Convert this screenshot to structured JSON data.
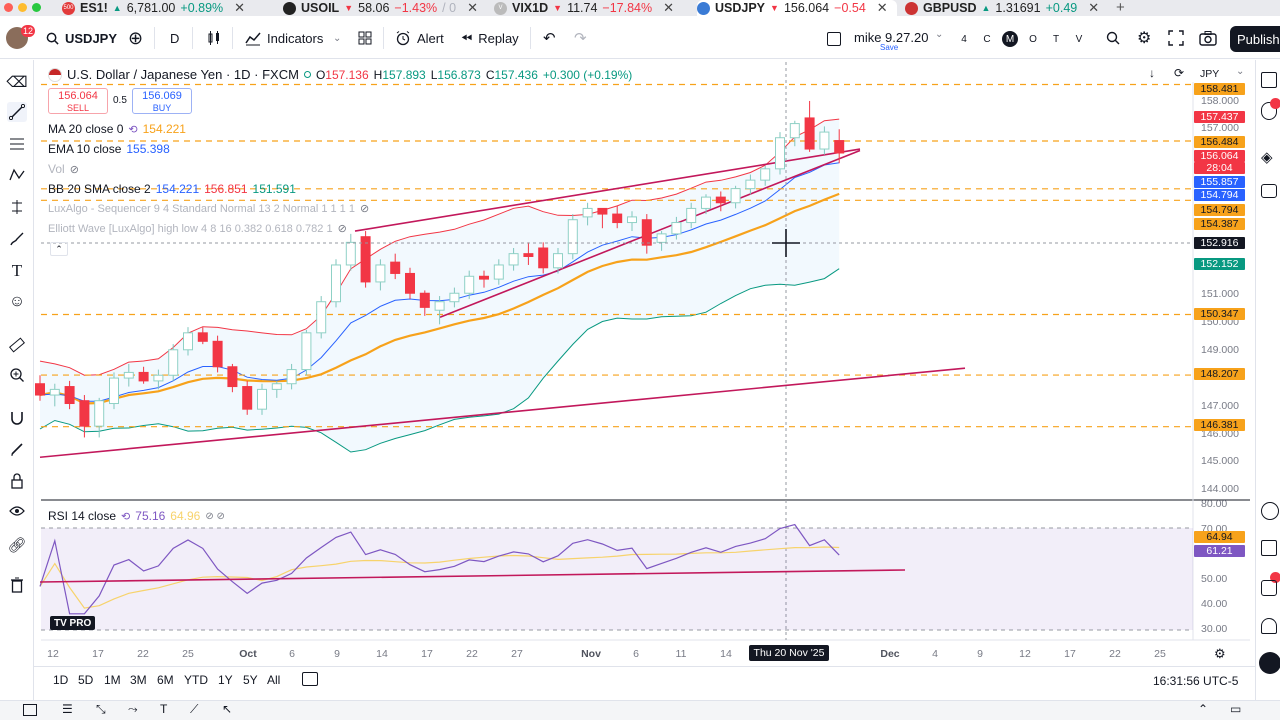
{
  "tabs": [
    {
      "badge": "500",
      "symbol": "ES1!",
      "price": "6,781.00",
      "change": "+0.89%",
      "dir": "up",
      "color": "#e23b3b"
    },
    {
      "badge": "",
      "symbol": "USOIL",
      "price": "58.06",
      "change": "−1.43%",
      "tail": "/ 0",
      "dir": "dn",
      "color": "#222"
    },
    {
      "badge": "V",
      "symbol": "VIX1D",
      "price": "11.74",
      "change": "−17.84%",
      "dir": "dn",
      "color": "#bbb"
    },
    {
      "badge": "",
      "symbol": "USDJPY",
      "price": "156.064",
      "change": "−0.54",
      "dir": "dn",
      "color": "#3a7bd5",
      "active": true
    },
    {
      "badge": "",
      "symbol": "GBPUSD",
      "price": "1.31691",
      "change": "+0.49",
      "dir": "up",
      "color": "#c33"
    }
  ],
  "toolbar": {
    "notif_count": "12",
    "symbol": "USDJPY",
    "interval": "D",
    "indicators": "Indicators",
    "alert": "Alert",
    "replay": "Replay",
    "layout_name": "mike 9.27.20",
    "layout_status": "Save",
    "layout_flags": [
      "4",
      "C",
      "M",
      "O",
      "T",
      "V"
    ],
    "publish": "Publish"
  },
  "chart_header": {
    "title": "U.S. Dollar / Japanese Yen · 1D · FXCM",
    "ohlc_o": "157.136",
    "ohlc_h": "157.893",
    "ohlc_l": "156.873",
    "ohlc_c": "157.436",
    "change": "+0.300 (+0.19%)",
    "currency": "JPY"
  },
  "trade": {
    "sell_price": "156.064",
    "sell_label": "SELL",
    "spread": "0.5",
    "buy_price": "156.069",
    "buy_label": "BUY"
  },
  "indicators": [
    {
      "label": "MA 20 close 0",
      "values": [
        "154.221"
      ],
      "colors": [
        "#f7a21b"
      ]
    },
    {
      "label": "EMA 10 close",
      "values": [
        "155.398"
      ],
      "colors": [
        "#2962ff"
      ]
    },
    {
      "label": "Vol",
      "values": [],
      "colors": []
    },
    {
      "label": "BB 20 SMA close 2",
      "values": [
        "154.221",
        "156.851",
        "151.591"
      ],
      "colors": [
        "#2962ff",
        "#f23645",
        "#089981"
      ]
    },
    {
      "label": "LuxAlgo - Sequencer 9 4 Standard Normal 13 2 Normal 1 1 1 1",
      "values": [],
      "colors": []
    },
    {
      "label": "Elliott Wave [LuxAlgo] high low 4 8 16 0.382 0.618 0.782 1",
      "values": [],
      "colors": []
    }
  ],
  "rsi": {
    "label": "RSI 14 close",
    "value": "75.16",
    "value2": "64.96"
  },
  "price_axis": {
    "ticks": [
      "158.000",
      "157.000",
      "156.000",
      "155.000",
      "153.000",
      "151.000",
      "150.000",
      "149.000",
      "147.000",
      "146.000",
      "145.000",
      "144.000"
    ],
    "boxes": [
      {
        "text": "158.481",
        "bg": "#f7a21b"
      },
      {
        "text": "157.437",
        "bg": "#f23645"
      },
      {
        "text": "156.484",
        "bg": "#f7a21b"
      },
      {
        "text": "156.064",
        "bg": "#f23645"
      },
      {
        "text": "28:04",
        "bg": "#f23645"
      },
      {
        "text": "155.857",
        "bg": "#2962ff"
      },
      {
        "text": "154.794",
        "bg": "#2962ff"
      },
      {
        "text": "154.794",
        "bg": "#f7a21b"
      },
      {
        "text": "154.387",
        "bg": "#f7a21b"
      },
      {
        "text": "152.916",
        "bg": "#131722"
      },
      {
        "text": "152.152",
        "bg": "#089981"
      },
      {
        "text": "150.347",
        "bg": "#f7a21b"
      },
      {
        "text": "148.207",
        "bg": "#f7a21b"
      },
      {
        "text": "146.381",
        "bg": "#f7a21b"
      }
    ]
  },
  "rsi_axis": {
    "ticks": [
      "80.00",
      "70.00",
      "50.00",
      "40.00",
      "30.00"
    ],
    "boxes": [
      {
        "text": "64.94",
        "bg": "#f7a21b"
      },
      {
        "text": "61.21",
        "bg": "#7e57c2"
      }
    ]
  },
  "time_axis": {
    "ticks": [
      "12",
      "17",
      "22",
      "25",
      "Oct",
      "6",
      "9",
      "14",
      "17",
      "22",
      "27",
      "Nov",
      "6",
      "11",
      "14",
      "Dec",
      "4",
      "9",
      "12",
      "17",
      "22",
      "25"
    ],
    "crosshair_label": "Thu 20 Nov '25"
  },
  "ranges": [
    "1D",
    "5D",
    "1M",
    "3M",
    "6M",
    "YTD",
    "1Y",
    "5Y",
    "All"
  ],
  "clock": "16:31:56 UTC-5",
  "logo": "TV PRO",
  "chart_data": {
    "type": "candlestick",
    "title": "U.S. Dollar / Japanese Yen · 1D · FXCM",
    "ylim": [
      144.0,
      158.5
    ],
    "candles": [
      {
        "o": 147.9,
        "h": 148.2,
        "l": 147.3,
        "c": 147.5
      },
      {
        "o": 147.5,
        "h": 147.9,
        "l": 147.1,
        "c": 147.7
      },
      {
        "o": 147.8,
        "h": 148.0,
        "l": 147.0,
        "c": 147.2
      },
      {
        "o": 147.3,
        "h": 147.5,
        "l": 146.0,
        "c": 146.4
      },
      {
        "o": 146.4,
        "h": 147.4,
        "l": 146.0,
        "c": 147.3
      },
      {
        "o": 147.2,
        "h": 148.3,
        "l": 147.0,
        "c": 148.1
      },
      {
        "o": 148.1,
        "h": 148.6,
        "l": 147.8,
        "c": 148.3
      },
      {
        "o": 148.3,
        "h": 148.5,
        "l": 147.9,
        "c": 148.0
      },
      {
        "o": 148.0,
        "h": 148.4,
        "l": 147.7,
        "c": 148.2
      },
      {
        "o": 148.2,
        "h": 149.3,
        "l": 148.0,
        "c": 149.1
      },
      {
        "o": 149.1,
        "h": 149.9,
        "l": 148.9,
        "c": 149.7
      },
      {
        "o": 149.7,
        "h": 149.9,
        "l": 149.3,
        "c": 149.4
      },
      {
        "o": 149.4,
        "h": 149.6,
        "l": 148.3,
        "c": 148.5
      },
      {
        "o": 148.5,
        "h": 148.6,
        "l": 147.6,
        "c": 147.8
      },
      {
        "o": 147.8,
        "h": 148.0,
        "l": 146.8,
        "c": 147.0
      },
      {
        "o": 147.0,
        "h": 147.9,
        "l": 146.8,
        "c": 147.7
      },
      {
        "o": 147.7,
        "h": 148.0,
        "l": 147.4,
        "c": 147.9
      },
      {
        "o": 147.9,
        "h": 148.6,
        "l": 147.7,
        "c": 148.4
      },
      {
        "o": 148.4,
        "h": 149.8,
        "l": 148.2,
        "c": 149.7
      },
      {
        "o": 149.7,
        "h": 151.0,
        "l": 149.5,
        "c": 150.8
      },
      {
        "o": 150.8,
        "h": 152.3,
        "l": 150.6,
        "c": 152.1
      },
      {
        "o": 152.1,
        "h": 153.2,
        "l": 151.9,
        "c": 152.9
      },
      {
        "o": 153.1,
        "h": 153.3,
        "l": 151.3,
        "c": 151.5
      },
      {
        "o": 151.5,
        "h": 152.3,
        "l": 151.2,
        "c": 152.1
      },
      {
        "o": 152.2,
        "h": 152.5,
        "l": 151.6,
        "c": 151.8
      },
      {
        "o": 151.8,
        "h": 152.0,
        "l": 150.9,
        "c": 151.1
      },
      {
        "o": 151.1,
        "h": 151.2,
        "l": 150.3,
        "c": 150.6
      },
      {
        "o": 150.5,
        "h": 151.0,
        "l": 150.0,
        "c": 150.8
      },
      {
        "o": 150.8,
        "h": 151.3,
        "l": 150.6,
        "c": 151.1
      },
      {
        "o": 151.1,
        "h": 151.9,
        "l": 150.9,
        "c": 151.7
      },
      {
        "o": 151.7,
        "h": 151.9,
        "l": 151.3,
        "c": 151.6
      },
      {
        "o": 151.6,
        "h": 152.3,
        "l": 151.4,
        "c": 152.1
      },
      {
        "o": 152.1,
        "h": 152.7,
        "l": 151.9,
        "c": 152.5
      },
      {
        "o": 152.5,
        "h": 152.9,
        "l": 152.1,
        "c": 152.4
      },
      {
        "o": 152.7,
        "h": 152.9,
        "l": 151.8,
        "c": 152.0
      },
      {
        "o": 152.0,
        "h": 152.7,
        "l": 151.8,
        "c": 152.5
      },
      {
        "o": 152.5,
        "h": 153.9,
        "l": 152.3,
        "c": 153.7
      },
      {
        "o": 153.8,
        "h": 154.3,
        "l": 153.5,
        "c": 154.1
      },
      {
        "o": 154.1,
        "h": 154.1,
        "l": 153.4,
        "c": 153.9
      },
      {
        "o": 153.9,
        "h": 154.2,
        "l": 153.4,
        "c": 153.6
      },
      {
        "o": 153.6,
        "h": 154.0,
        "l": 153.3,
        "c": 153.8
      },
      {
        "o": 153.7,
        "h": 153.9,
        "l": 152.5,
        "c": 152.8
      },
      {
        "o": 152.9,
        "h": 153.3,
        "l": 152.6,
        "c": 153.2
      },
      {
        "o": 153.2,
        "h": 153.8,
        "l": 153.0,
        "c": 153.6
      },
      {
        "o": 153.6,
        "h": 154.3,
        "l": 153.4,
        "c": 154.1
      },
      {
        "o": 154.1,
        "h": 154.6,
        "l": 153.9,
        "c": 154.5
      },
      {
        "o": 154.5,
        "h": 154.7,
        "l": 154.0,
        "c": 154.3
      },
      {
        "o": 154.3,
        "h": 154.9,
        "l": 154.1,
        "c": 154.8
      },
      {
        "o": 154.8,
        "h": 155.3,
        "l": 154.6,
        "c": 155.1
      },
      {
        "o": 155.1,
        "h": 155.6,
        "l": 154.9,
        "c": 155.5
      },
      {
        "o": 155.5,
        "h": 156.8,
        "l": 155.3,
        "c": 156.6
      },
      {
        "o": 156.6,
        "h": 157.2,
        "l": 156.3,
        "c": 157.1
      },
      {
        "o": 157.3,
        "h": 157.9,
        "l": 156.1,
        "c": 156.2
      },
      {
        "o": 156.2,
        "h": 157.0,
        "l": 156.0,
        "c": 156.8
      },
      {
        "o": 156.5,
        "h": 156.9,
        "l": 155.7,
        "c": 156.06
      }
    ],
    "series": [
      {
        "name": "MA 20 close 0"
      },
      {
        "name": "EMA 10 close"
      },
      {
        "name": "BB 20 SMA close 2"
      },
      {
        "name": "RSI 14 close"
      }
    ],
    "levels": [
      158.481,
      156.484,
      154.794,
      154.387,
      150.347,
      148.207,
      146.381
    ]
  }
}
